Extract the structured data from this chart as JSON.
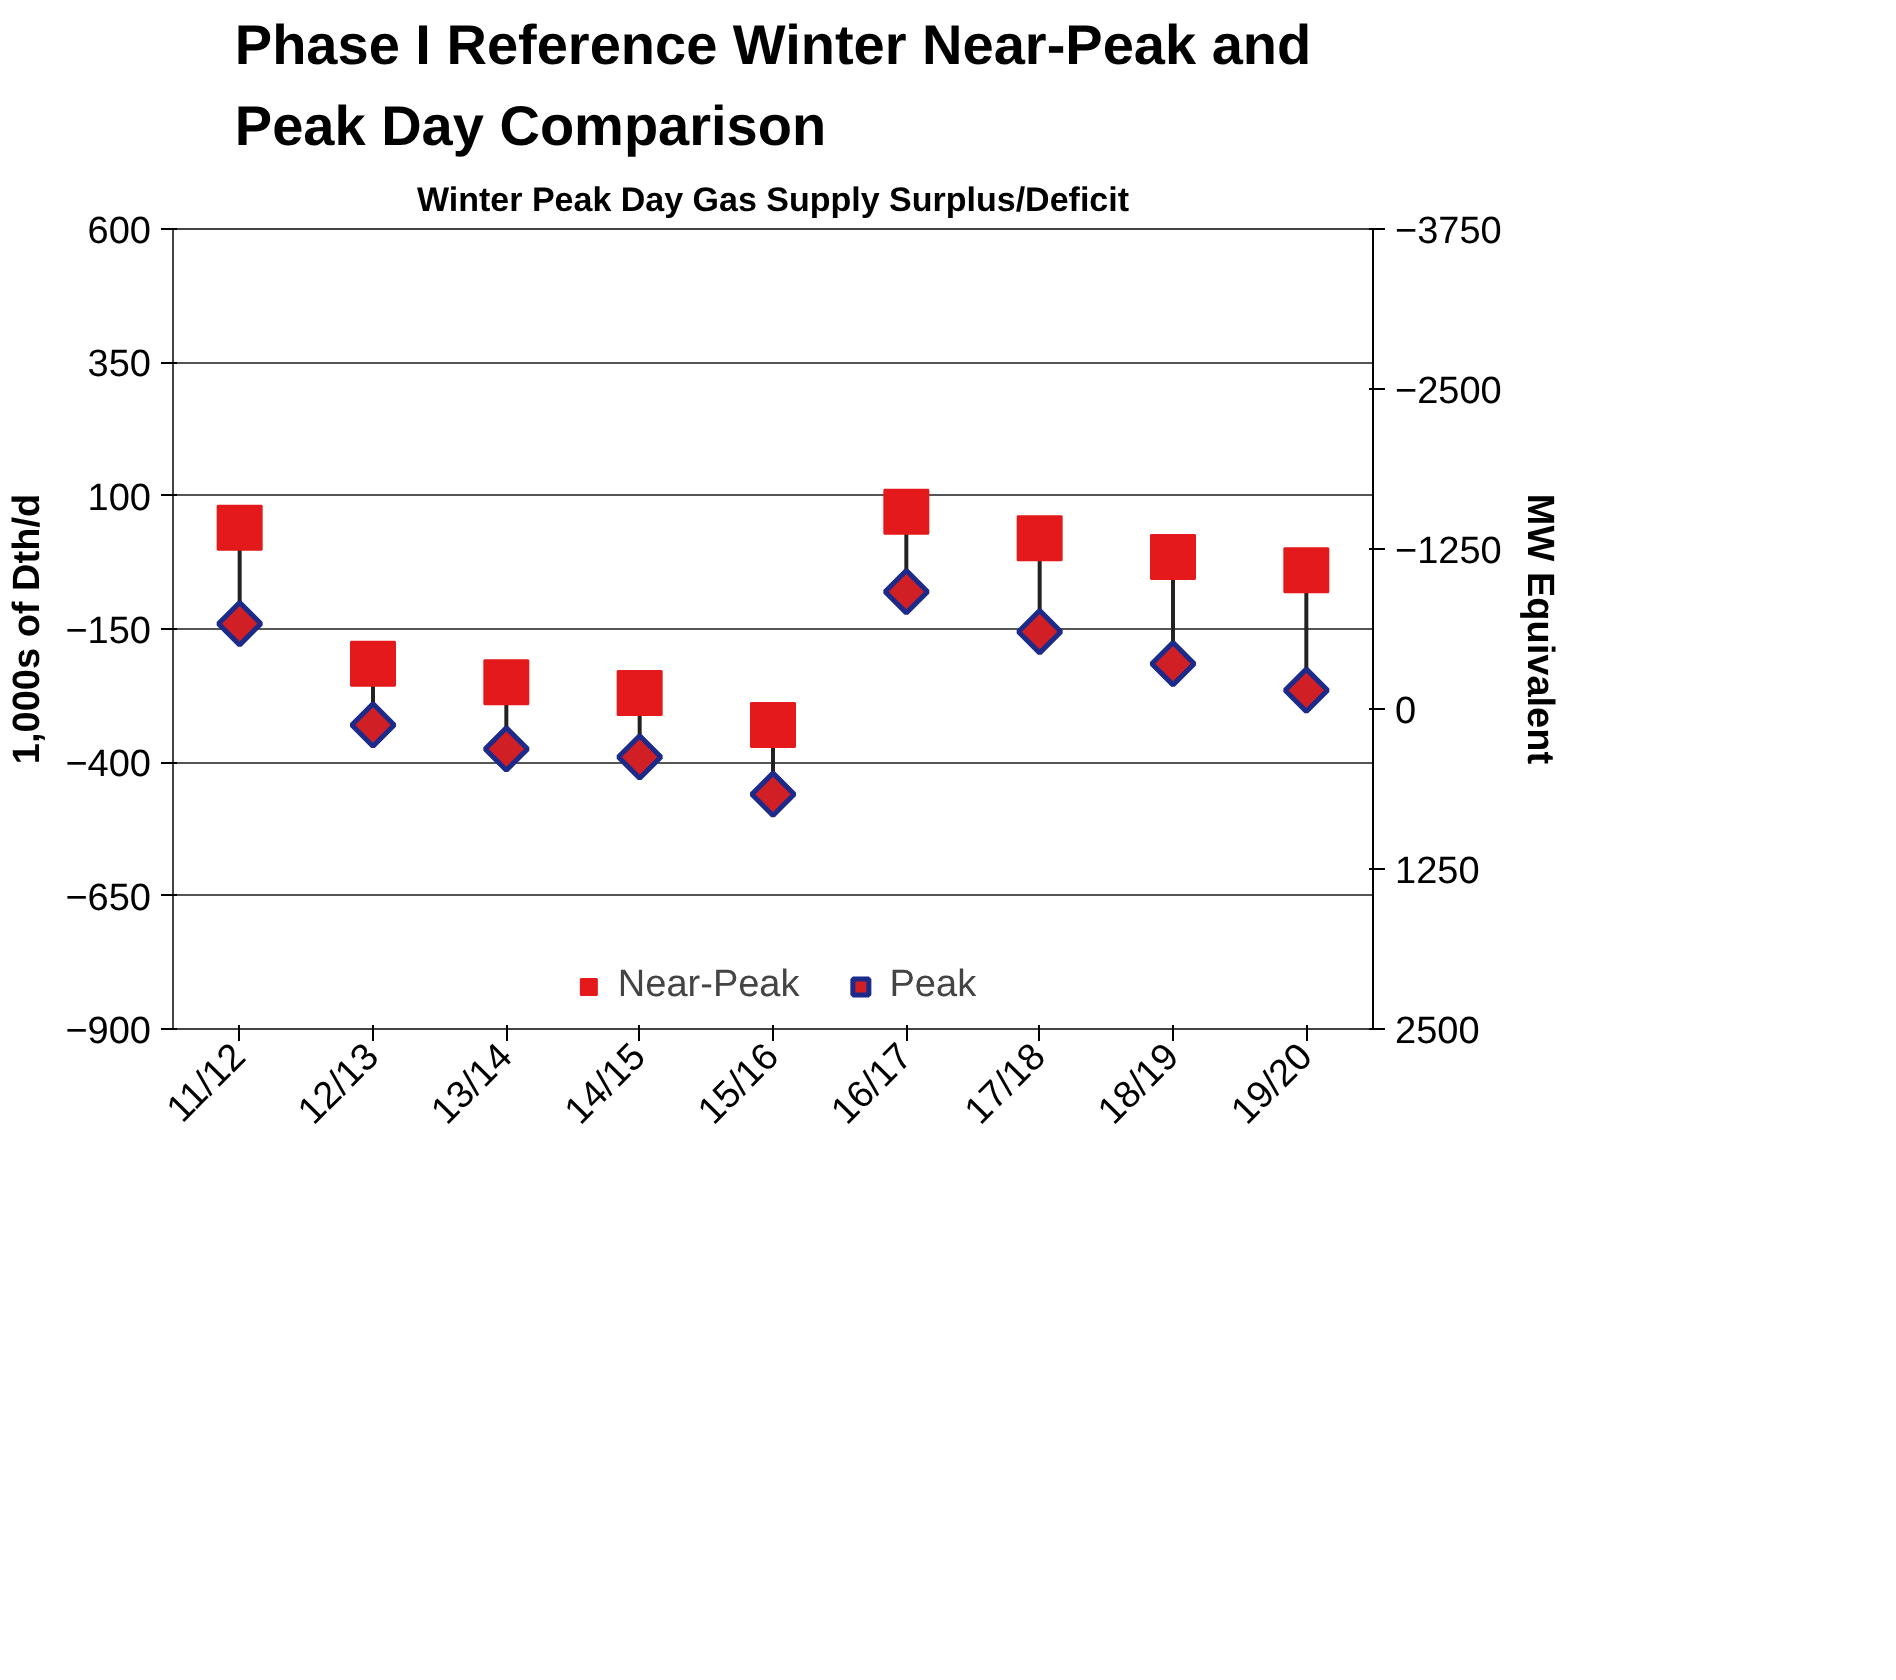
{
  "chart_data": {
    "type": "scatter",
    "title": "Phase I Reference Winter Near-Peak and Peak Day Comparison",
    "subtitle": "Winter Peak Day Gas Supply Surplus/Deficit",
    "ylabel": "1,000s of Dth/d",
    "y2label": "MW Equivalent",
    "categories": [
      "11/12",
      "12/13",
      "13/14",
      "14/15",
      "15/16",
      "16/17",
      "17/18",
      "18/19",
      "19/20"
    ],
    "series": [
      {
        "name": "Near-Peak",
        "color": "#e3191b",
        "marker": "square",
        "values": [
          40,
          -215,
          -250,
          -270,
          -330,
          70,
          20,
          -15,
          -40
        ]
      },
      {
        "name": "Peak",
        "color": "#d11f26",
        "marker": "diamond",
        "values": [
          -140,
          -330,
          -375,
          -390,
          -460,
          -80,
          -155,
          -215,
          -265
        ]
      }
    ],
    "ylim": [
      -900,
      600
    ],
    "yticks": [
      -900,
      -650,
      -400,
      -150,
      100,
      350,
      600
    ],
    "y2lim": [
      2500,
      -3750
    ],
    "y2ticks": [
      2500,
      1250,
      0,
      -1250,
      -2500,
      -3750
    ],
    "grid": "y",
    "legend": "bottom"
  }
}
